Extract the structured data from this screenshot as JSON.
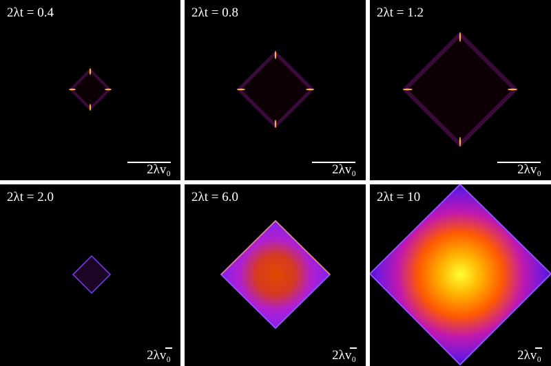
{
  "panels": [
    {
      "label": "2λt = 0.4",
      "scale_label": "2λv₀"
    },
    {
      "label": "2λt = 0.8",
      "scale_label": "2λv₀"
    },
    {
      "label": "2λt = 1.2",
      "scale_label": "2λv₀"
    },
    {
      "label": "2λt = 2.0",
      "scale_label": "2λv₀"
    },
    {
      "label": "2λt = 6.0",
      "scale_label": "2λv₀"
    },
    {
      "label": "2λt = 10",
      "scale_label": "2λv₀"
    }
  ]
}
